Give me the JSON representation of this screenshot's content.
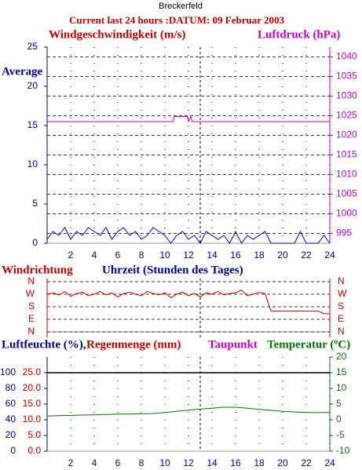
{
  "header": {
    "station": "Breckerfeld",
    "title": "Current last 24 hours :DATUM: 09 Februar 2003"
  },
  "chart_data": [
    {
      "type": "line",
      "annotation": "Average",
      "xlim": [
        0,
        24
      ],
      "xticks": [
        2,
        4,
        6,
        8,
        10,
        12,
        14,
        16,
        18,
        20,
        22,
        24
      ],
      "ylim": [
        0,
        25
      ],
      "yticks": [
        0,
        5,
        10,
        15,
        20,
        25
      ],
      "y2lim": [
        992.5,
        1042.5
      ],
      "y2ticks": [
        995,
        1000,
        1005,
        1010,
        1015,
        1020,
        1025,
        1030,
        1035,
        1040
      ],
      "now": 13,
      "grid": true,
      "x": [
        0,
        0.5,
        1,
        1.5,
        2,
        2.5,
        3,
        3.5,
        4,
        4.5,
        5,
        5.5,
        6,
        6.5,
        7,
        7.5,
        8,
        8.5,
        9,
        9.5,
        10,
        10.5,
        11,
        11.5,
        12,
        12.5,
        13,
        13.5,
        14,
        14.5,
        15,
        15.5,
        16,
        16.5,
        17,
        17.5,
        18,
        18.5,
        19,
        19.5,
        20,
        20.5,
        21,
        21.5,
        22,
        22.5,
        23,
        23.5,
        24
      ],
      "series": [
        {
          "name": "Windgeschwindigkeit (m/s)",
          "color": "#0000cc",
          "values": [
            0.5,
            1.5,
            1,
            2,
            0.5,
            1.5,
            1,
            2,
            1.5,
            1,
            2,
            0.5,
            1.5,
            2,
            1,
            1.5,
            0.5,
            1,
            2,
            1.5,
            1,
            0,
            1,
            1.5,
            0.5,
            1,
            0,
            1.5,
            1,
            0.5,
            1,
            0,
            1.5,
            0,
            1,
            0.5,
            1,
            1.5,
            0,
            0,
            0,
            0,
            0,
            1.5,
            0,
            0,
            0,
            1,
            0
          ]
        },
        {
          "name": "Luftdruck (hPa)",
          "color": "#cc00cc",
          "axis": "y2",
          "x": [
            0,
            10.7,
            10.8,
            11.9,
            12.0,
            12.2,
            12.3,
            24
          ],
          "values": [
            1023.5,
            1023.5,
            1024.8,
            1024.8,
            1023.5,
            1024.8,
            1023.5,
            1023.5
          ]
        }
      ]
    },
    {
      "type": "line",
      "title": "Windrichtung",
      "x_label": "Uhrzeit (Stunden des Tages)",
      "xlim": [
        0,
        24
      ],
      "ylim": [
        0,
        360
      ],
      "yticks": [
        {
          "value": 360,
          "label": "N"
        },
        {
          "value": 270,
          "label": "W"
        },
        {
          "value": 180,
          "label": "S"
        },
        {
          "value": 90,
          "label": "E"
        },
        {
          "value": 0,
          "label": "N"
        }
      ],
      "now": 13,
      "x": [
        0,
        0.5,
        1,
        1.5,
        2,
        2.5,
        3,
        3.5,
        4,
        4.5,
        5,
        5.5,
        6,
        6.5,
        7,
        7.5,
        8,
        8.5,
        9,
        9.5,
        10,
        10.5,
        11,
        11.5,
        12,
        12.5,
        13,
        13.5,
        14,
        14.5,
        15,
        15.5,
        16,
        16.5,
        17,
        17.5,
        18,
        18.5,
        19,
        19.5,
        20,
        20.5,
        21,
        21.5,
        22,
        22.5,
        23,
        23.5,
        24
      ],
      "series": [
        {
          "color": "#cc0000",
          "values": [
            270,
            280,
            265,
            290,
            255,
            275,
            285,
            260,
            270,
            290,
            265,
            280,
            250,
            275,
            285,
            270,
            260,
            290,
            275,
            265,
            280,
            245,
            270,
            285,
            260,
            275,
            250,
            280,
            270,
            290,
            265,
            275,
            280,
            300,
            260,
            270,
            285,
            275,
            150,
            150,
            150,
            150,
            150,
            150,
            150,
            150,
            150,
            130,
            130
          ]
        }
      ]
    },
    {
      "type": "line",
      "labels": [
        "Luftfeuchte (%),",
        "Regenmenge (mm)",
        "Taupunkt"
      ],
      "xlim": [
        0,
        24
      ],
      "xticks": [
        2,
        4,
        6,
        8,
        10,
        12,
        14,
        16,
        18,
        20,
        22,
        24
      ],
      "ylim": [
        0,
        120
      ],
      "yticks": [
        0,
        20,
        40,
        60,
        80,
        100
      ],
      "y3lim": [
        0,
        30
      ],
      "y3ticks": [
        {
          "value": 0,
          "label": "0.0"
        },
        {
          "value": 5,
          "label": "5.0"
        },
        {
          "value": 10,
          "label": "10.0"
        },
        {
          "value": 15,
          "label": "15.0"
        },
        {
          "value": 20,
          "label": "20.0"
        },
        {
          "value": 25,
          "label": "25.0"
        }
      ],
      "y2lim": [
        -10,
        20
      ],
      "y2ticks": [
        -10,
        -5,
        0,
        5,
        10,
        15,
        20
      ],
      "hline": 100,
      "now": 13,
      "x": [
        0,
        1,
        2,
        3,
        4,
        5,
        6,
        7,
        8,
        9,
        10,
        11,
        12,
        13,
        14,
        15,
        16,
        17,
        18,
        19,
        20,
        21,
        22,
        23,
        24
      ],
      "series": [
        {
          "name": "Temperatur (ºC)",
          "color": "#007700",
          "axis": "y2",
          "values": [
            1.2,
            1.3,
            1.4,
            1.5,
            1.6,
            1.7,
            1.8,
            1.8,
            1.9,
            2.0,
            2.3,
            2.7,
            3.1,
            3.4,
            3.7,
            4.0,
            4.0,
            3.7,
            3.3,
            3.0,
            2.7,
            2.5,
            2.3,
            2.3,
            2.3
          ]
        }
      ]
    }
  ]
}
